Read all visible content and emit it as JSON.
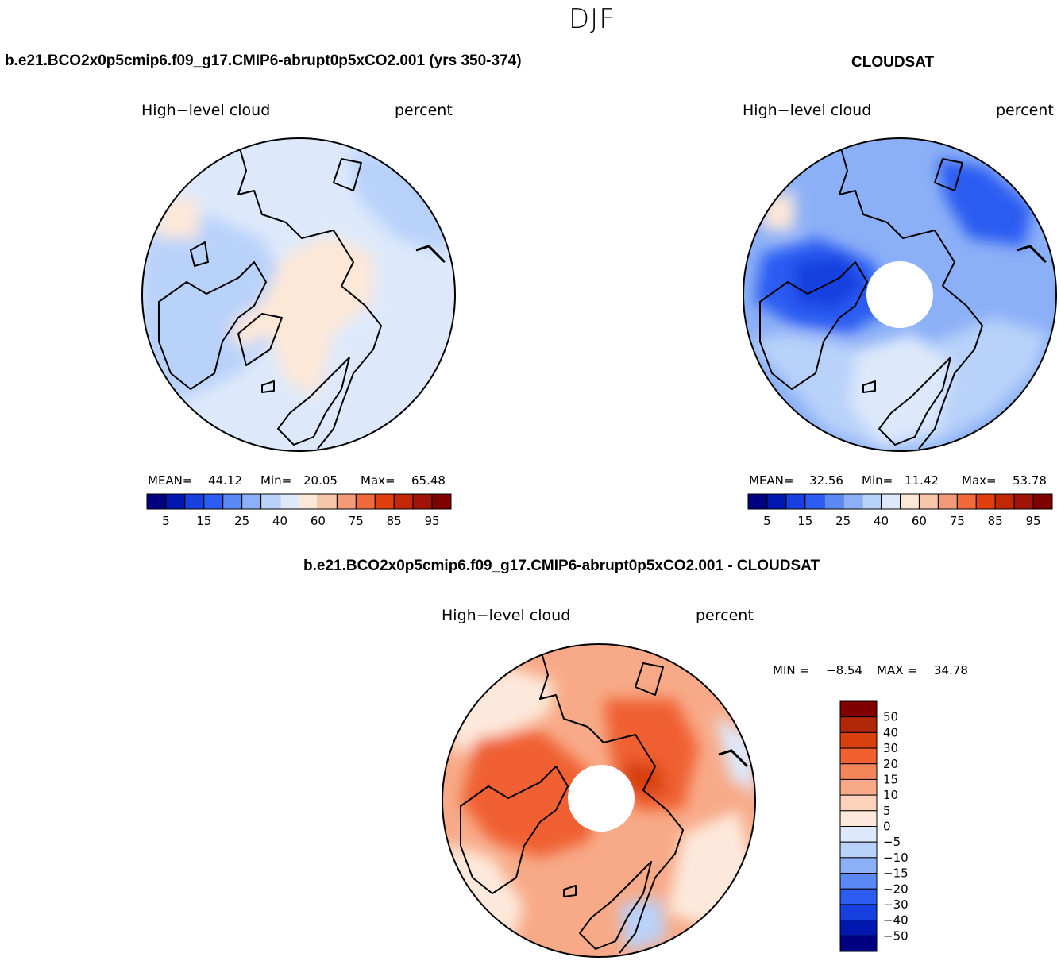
{
  "figure": {
    "season": "DJF",
    "variable": "High−level cloud",
    "units": "percent"
  },
  "panels": {
    "model": {
      "title": "b.e21.BCO2x0p5cmip6.f09_g17.CMIP6-abrupt0p5xCO2.001 (yrs 350-374)",
      "left_label": "High−level cloud",
      "right_label": "percent",
      "mean_label": "MEAN=",
      "mean": "44.12",
      "min_label": "Min=",
      "min": "20.05",
      "max_label": "Max=",
      "max": "65.48"
    },
    "obs": {
      "title": "CLOUDSAT",
      "left_label": "High−level cloud",
      "right_label": "percent",
      "mean_label": "MEAN=",
      "mean": "32.56",
      "min_label": "Min=",
      "min": "11.42",
      "max_label": "Max=",
      "max": "53.78"
    },
    "diff": {
      "title": "b.e21.BCO2x0p5cmip6.f09_g17.CMIP6-abrupt0p5xCO2.001 - CLOUDSAT",
      "left_label": "High−level cloud",
      "right_label": "percent",
      "min_label": "MIN =",
      "min": "−8.54",
      "max_label": "MAX =",
      "max": "34.78"
    }
  },
  "colorbars": {
    "abs_levels": [
      "5",
      "15",
      "25",
      "40",
      "60",
      "75",
      "85",
      "95"
    ],
    "abs_colors": [
      "#000080",
      "#0018b0",
      "#1840e0",
      "#2c5cf2",
      "#5a88f5",
      "#8cb0f7",
      "#b9d2fa",
      "#dde9fb",
      "#fde8d8",
      "#f8c6a8",
      "#f59a78",
      "#f06a3c",
      "#e04010",
      "#c02808",
      "#a01408",
      "#800000"
    ],
    "diff_levels": [
      "50",
      "40",
      "30",
      "20",
      "15",
      "10",
      "5",
      "0",
      "−5",
      "−10",
      "−15",
      "−20",
      "−30",
      "−40",
      "−50"
    ],
    "diff_colors_top_to_bottom": [
      "#800000",
      "#b02808",
      "#d84010",
      "#f06030",
      "#f5865a",
      "#f8aa88",
      "#fcd2bc",
      "#fde9dc",
      "#dde9fb",
      "#b9d2fa",
      "#8cb0f7",
      "#5a88f5",
      "#2c5cf2",
      "#1840e0",
      "#0018b0",
      "#000080"
    ]
  },
  "chart_data": [
    {
      "type": "heatmap",
      "projection": "north polar stereographic",
      "title": "b.e21.BCO2x0p5cmip6.f09_g17.CMIP6-abrupt0p5xCO2.001 (yrs 350-374)",
      "variable": "High−level cloud",
      "units": "percent",
      "mean": 44.12,
      "min": 20.05,
      "max": 65.48,
      "color_levels": [
        5,
        10,
        15,
        20,
        25,
        30,
        40,
        50,
        60,
        65,
        75,
        80,
        85,
        90,
        95
      ]
    },
    {
      "type": "heatmap",
      "projection": "north polar stereographic",
      "title": "CLOUDSAT",
      "variable": "High−level cloud",
      "units": "percent",
      "mean": 32.56,
      "min": 11.42,
      "max": 53.78,
      "color_levels": [
        5,
        10,
        15,
        20,
        25,
        30,
        40,
        50,
        60,
        65,
        75,
        80,
        85,
        90,
        95
      ]
    },
    {
      "type": "heatmap",
      "projection": "north polar stereographic",
      "title": "b.e21.BCO2x0p5cmip6.f09_g17.CMIP6-abrupt0p5xCO2.001 - CLOUDSAT",
      "variable": "High−level cloud",
      "units": "percent",
      "min": -8.54,
      "max": 34.78,
      "color_levels": [
        -50,
        -40,
        -30,
        -20,
        -15,
        -10,
        -5,
        0,
        5,
        10,
        15,
        20,
        30,
        40,
        50
      ]
    }
  ]
}
